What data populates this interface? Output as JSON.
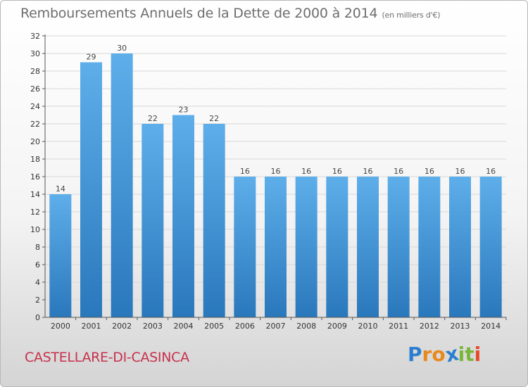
{
  "title": "Remboursements Annuels de la Dette de 2000 à 2014",
  "subtitle": "(en milliers d'€)",
  "place": "CASTELLARE-DI-CASINCA",
  "logo": {
    "text": "Proxiti",
    "letter_colors": [
      "#2c7fd0",
      "#e8891e",
      "#e8891e",
      "#2c7fd0",
      "#7ab63a",
      "#7ab63a",
      "#e84a2c"
    ]
  },
  "colors": {
    "bar_top": "#5eaeea",
    "bar_bottom": "#2a78bc",
    "axis": "#555555",
    "grid": "#d8d8d8"
  },
  "chart_data": {
    "type": "bar",
    "title": "Remboursements Annuels de la Dette de 2000 à 2014",
    "subtitle": "(en milliers d'€)",
    "categories": [
      "2000",
      "2001",
      "2002",
      "2003",
      "2004",
      "2005",
      "2006",
      "2007",
      "2008",
      "2009",
      "2010",
      "2011",
      "2012",
      "2013",
      "2014"
    ],
    "values": [
      14,
      29,
      30,
      22,
      23,
      22,
      16,
      16,
      16,
      16,
      16,
      16,
      16,
      16,
      16
    ],
    "xlabel": "",
    "ylabel": "",
    "ylim": [
      0,
      32
    ],
    "yticks": [
      0,
      2,
      4,
      6,
      8,
      10,
      12,
      14,
      16,
      18,
      20,
      22,
      24,
      26,
      28,
      30,
      32
    ],
    "grid": true,
    "data_labels": true
  }
}
